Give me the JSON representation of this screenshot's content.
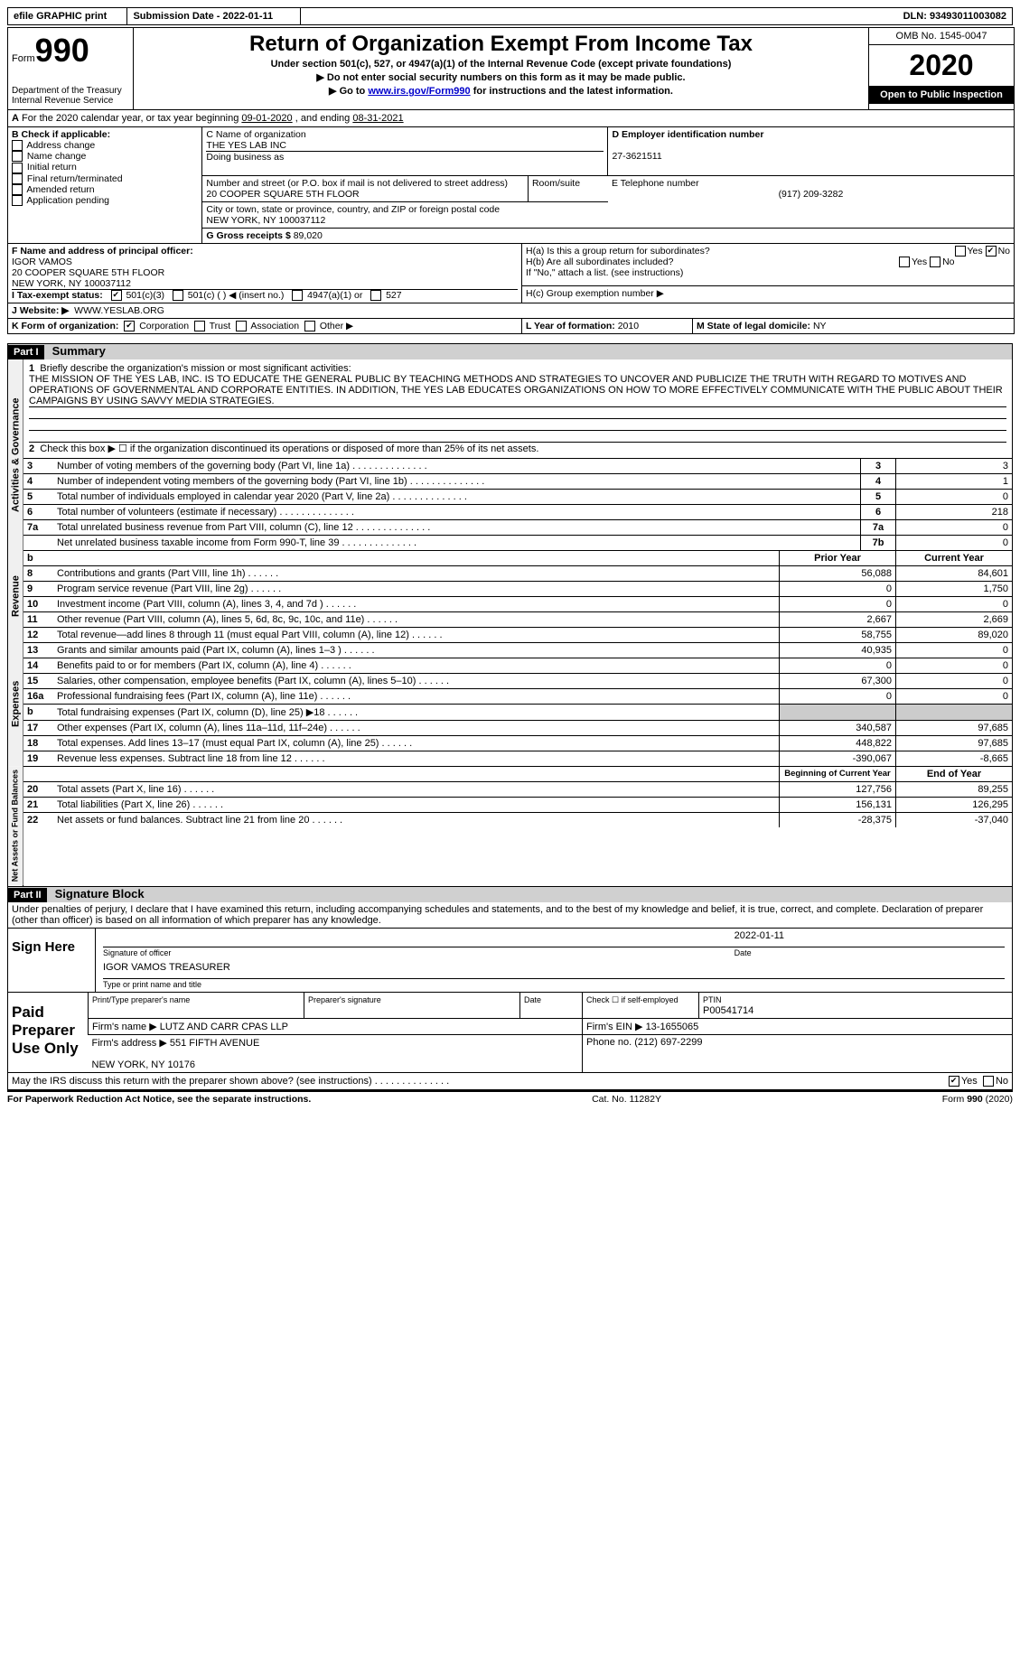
{
  "top": {
    "efile": "efile GRAPHIC print",
    "submission": "Submission Date - 2022-01-11",
    "dln_label": "DLN:",
    "dln": "93493011003082"
  },
  "header": {
    "form_word": "Form",
    "form_no": "990",
    "dept": "Department of the Treasury\nInternal Revenue Service",
    "title": "Return of Organization Exempt From Income Tax",
    "subtitle": "Under section 501(c), 527, or 4947(a)(1) of the Internal Revenue Code (except private foundations)",
    "note1": "Do not enter social security numbers on this form as it may be made public.",
    "note2_pre": "Go to ",
    "note2_link": "www.irs.gov/Form990",
    "note2_post": " for instructions and the latest information.",
    "omb": "OMB No. 1545-0047",
    "year": "2020",
    "open": "Open to Public Inspection"
  },
  "rowA": {
    "label": "A",
    "text_pre": "For the 2020 calendar year, or tax year beginning ",
    "begin": "09-01-2020",
    "mid": " , and ending ",
    "end": "08-31-2021"
  },
  "B": {
    "head": "B Check if applicable:",
    "addr": "Address change",
    "name": "Name change",
    "init": "Initial return",
    "final": "Final return/terminated",
    "amend": "Amended return",
    "app": "Application pending"
  },
  "C": {
    "label": "C Name of organization",
    "org": "THE YES LAB INC",
    "dba": "Doing business as",
    "addr_label": "Number and street (or P.O. box if mail is not delivered to street address)",
    "addr": "20 COOPER SQUARE 5TH FLOOR",
    "room": "Room/suite",
    "city_label": "City or town, state or province, country, and ZIP or foreign postal code",
    "city": "NEW YORK, NY  100037112"
  },
  "D": {
    "label": "D Employer identification number",
    "val": "27-3621511"
  },
  "E": {
    "label": "E Telephone number",
    "val": "(917) 209-3282"
  },
  "G": {
    "label": "G Gross receipts $",
    "val": "89,020"
  },
  "F": {
    "label": "F Name and address of principal officer:",
    "name": "IGOR VAMOS",
    "addr1": "20 COOPER SQUARE 5TH FLOOR",
    "addr2": "NEW YORK, NY  100037112"
  },
  "H": {
    "a": "H(a)  Is this a group return for subordinates?",
    "b": "H(b)  Are all subordinates included?",
    "b_note": "If \"No,\" attach a list. (see instructions)",
    "c": "H(c)  Group exemption number ▶",
    "yes": "Yes",
    "no": "No"
  },
  "I": {
    "label": "I   Tax-exempt status:",
    "c3": "501(c)(3)",
    "c": "501(c) (  ) ◀ (insert no.)",
    "a1": "4947(a)(1) or",
    "s527": "527"
  },
  "J": {
    "label": "J   Website: ▶",
    "val": "WWW.YESLAB.ORG"
  },
  "K": {
    "label": "K Form of organization:",
    "corp": "Corporation",
    "trust": "Trust",
    "assoc": "Association",
    "other": "Other ▶"
  },
  "L": {
    "label": "L Year of formation:",
    "val": "2010"
  },
  "M": {
    "label": "M State of legal domicile:",
    "val": "NY"
  },
  "part1": {
    "bar": "Part I",
    "title": "Summary",
    "tab1": "Activities & Governance",
    "tab2": "Revenue",
    "tab3": "Expenses",
    "tab4": "Net Assets or Fund Balances",
    "l1": "Briefly describe the organization's mission or most significant activities:",
    "mission": "THE MISSION OF THE YES LAB, INC. IS TO EDUCATE THE GENERAL PUBLIC BY TEACHING METHODS AND STRATEGIES TO UNCOVER AND PUBLICIZE THE TRUTH WITH REGARD TO MOTIVES AND OPERATIONS OF GOVERNMENTAL AND CORPORATE ENTITIES. IN ADDITION, THE YES LAB EDUCATES ORGANIZATIONS ON HOW TO MORE EFFECTIVELY COMMUNICATE WITH THE PUBLIC ABOUT THEIR CAMPAIGNS BY USING SAVVY MEDIA STRATEGIES.",
    "l2": "Check this box ▶ ☐  if the organization discontinued its operations or disposed of more than 25% of its net assets.",
    "rows_ag": [
      {
        "n": "3",
        "t": "Number of voting members of the governing body (Part VI, line 1a)",
        "b": "3",
        "v": "3"
      },
      {
        "n": "4",
        "t": "Number of independent voting members of the governing body (Part VI, line 1b)",
        "b": "4",
        "v": "1"
      },
      {
        "n": "5",
        "t": "Total number of individuals employed in calendar year 2020 (Part V, line 2a)",
        "b": "5",
        "v": "0"
      },
      {
        "n": "6",
        "t": "Total number of volunteers (estimate if necessary)",
        "b": "6",
        "v": "218"
      },
      {
        "n": "7a",
        "t": "Total unrelated business revenue from Part VIII, column (C), line 12",
        "b": "7a",
        "v": "0"
      },
      {
        "n": "",
        "t": "Net unrelated business taxable income from Form 990-T, line 39",
        "b": "7b",
        "v": "0"
      }
    ],
    "py": "Prior Year",
    "cy": "Current Year",
    "rev": [
      {
        "n": "8",
        "t": "Contributions and grants (Part VIII, line 1h)",
        "p": "56,088",
        "c": "84,601"
      },
      {
        "n": "9",
        "t": "Program service revenue (Part VIII, line 2g)",
        "p": "0",
        "c": "1,750"
      },
      {
        "n": "10",
        "t": "Investment income (Part VIII, column (A), lines 3, 4, and 7d )",
        "p": "0",
        "c": "0"
      },
      {
        "n": "11",
        "t": "Other revenue (Part VIII, column (A), lines 5, 6d, 8c, 9c, 10c, and 11e)",
        "p": "2,667",
        "c": "2,669"
      },
      {
        "n": "12",
        "t": "Total revenue—add lines 8 through 11 (must equal Part VIII, column (A), line 12)",
        "p": "58,755",
        "c": "89,020"
      }
    ],
    "exp": [
      {
        "n": "13",
        "t": "Grants and similar amounts paid (Part IX, column (A), lines 1–3 )",
        "p": "40,935",
        "c": "0"
      },
      {
        "n": "14",
        "t": "Benefits paid to or for members (Part IX, column (A), line 4)",
        "p": "0",
        "c": "0"
      },
      {
        "n": "15",
        "t": "Salaries, other compensation, employee benefits (Part IX, column (A), lines 5–10)",
        "p": "67,300",
        "c": "0"
      },
      {
        "n": "16a",
        "t": "Professional fundraising fees (Part IX, column (A), line 11e)",
        "p": "0",
        "c": "0"
      },
      {
        "n": "b",
        "t": "Total fundraising expenses (Part IX, column (D), line 25) ▶18",
        "p": "",
        "c": "",
        "shade": true
      },
      {
        "n": "17",
        "t": "Other expenses (Part IX, column (A), lines 11a–11d, 11f–24e)",
        "p": "340,587",
        "c": "97,685"
      },
      {
        "n": "18",
        "t": "Total expenses. Add lines 13–17 (must equal Part IX, column (A), line 25)",
        "p": "448,822",
        "c": "97,685"
      },
      {
        "n": "19",
        "t": "Revenue less expenses. Subtract line 18 from line 12",
        "p": "-390,067",
        "c": "-8,665"
      }
    ],
    "bcy": "Beginning of Current Year",
    "eoy": "End of Year",
    "net": [
      {
        "n": "20",
        "t": "Total assets (Part X, line 16)",
        "p": "127,756",
        "c": "89,255"
      },
      {
        "n": "21",
        "t": "Total liabilities (Part X, line 26)",
        "p": "156,131",
        "c": "126,295"
      },
      {
        "n": "22",
        "t": "Net assets or fund balances. Subtract line 21 from line 20",
        "p": "-28,375",
        "c": "-37,040"
      }
    ]
  },
  "part2": {
    "bar": "Part II",
    "title": "Signature Block",
    "decl": "Under penalties of perjury, I declare that I have examined this return, including accompanying schedules and statements, and to the best of my knowledge and belief, it is true, correct, and complete. Declaration of preparer (other than officer) is based on all information of which preparer has any knowledge.",
    "sign_here": "Sign Here",
    "sig_officer": "Signature of officer",
    "date": "Date",
    "date_val": "2022-01-11",
    "officer": "IGOR VAMOS TREASURER",
    "type_name": "Type or print name and title",
    "paid": "Paid Preparer Use Only",
    "ptp": "Print/Type preparer's name",
    "psig": "Preparer's signature",
    "pdate": "Date",
    "chk_se": "Check ☐ if self-employed",
    "ptin_l": "PTIN",
    "ptin": "P00541714",
    "firm_name_l": "Firm's name    ▶",
    "firm_name": "LUTZ AND CARR CPAS LLP",
    "firm_ein_l": "Firm's EIN ▶",
    "firm_ein": "13-1655065",
    "firm_addr_l": "Firm's address ▶",
    "firm_addr1": "551 FIFTH AVENUE",
    "firm_addr2": "NEW YORK, NY  10176",
    "phone_l": "Phone no.",
    "phone": "(212) 697-2299",
    "discuss": "May the IRS discuss this return with the preparer shown above? (see instructions)",
    "yes": "Yes",
    "no": "No"
  },
  "footer": {
    "pra": "For Paperwork Reduction Act Notice, see the separate instructions.",
    "cat": "Cat. No. 11282Y",
    "form": "Form 990 (2020)"
  }
}
